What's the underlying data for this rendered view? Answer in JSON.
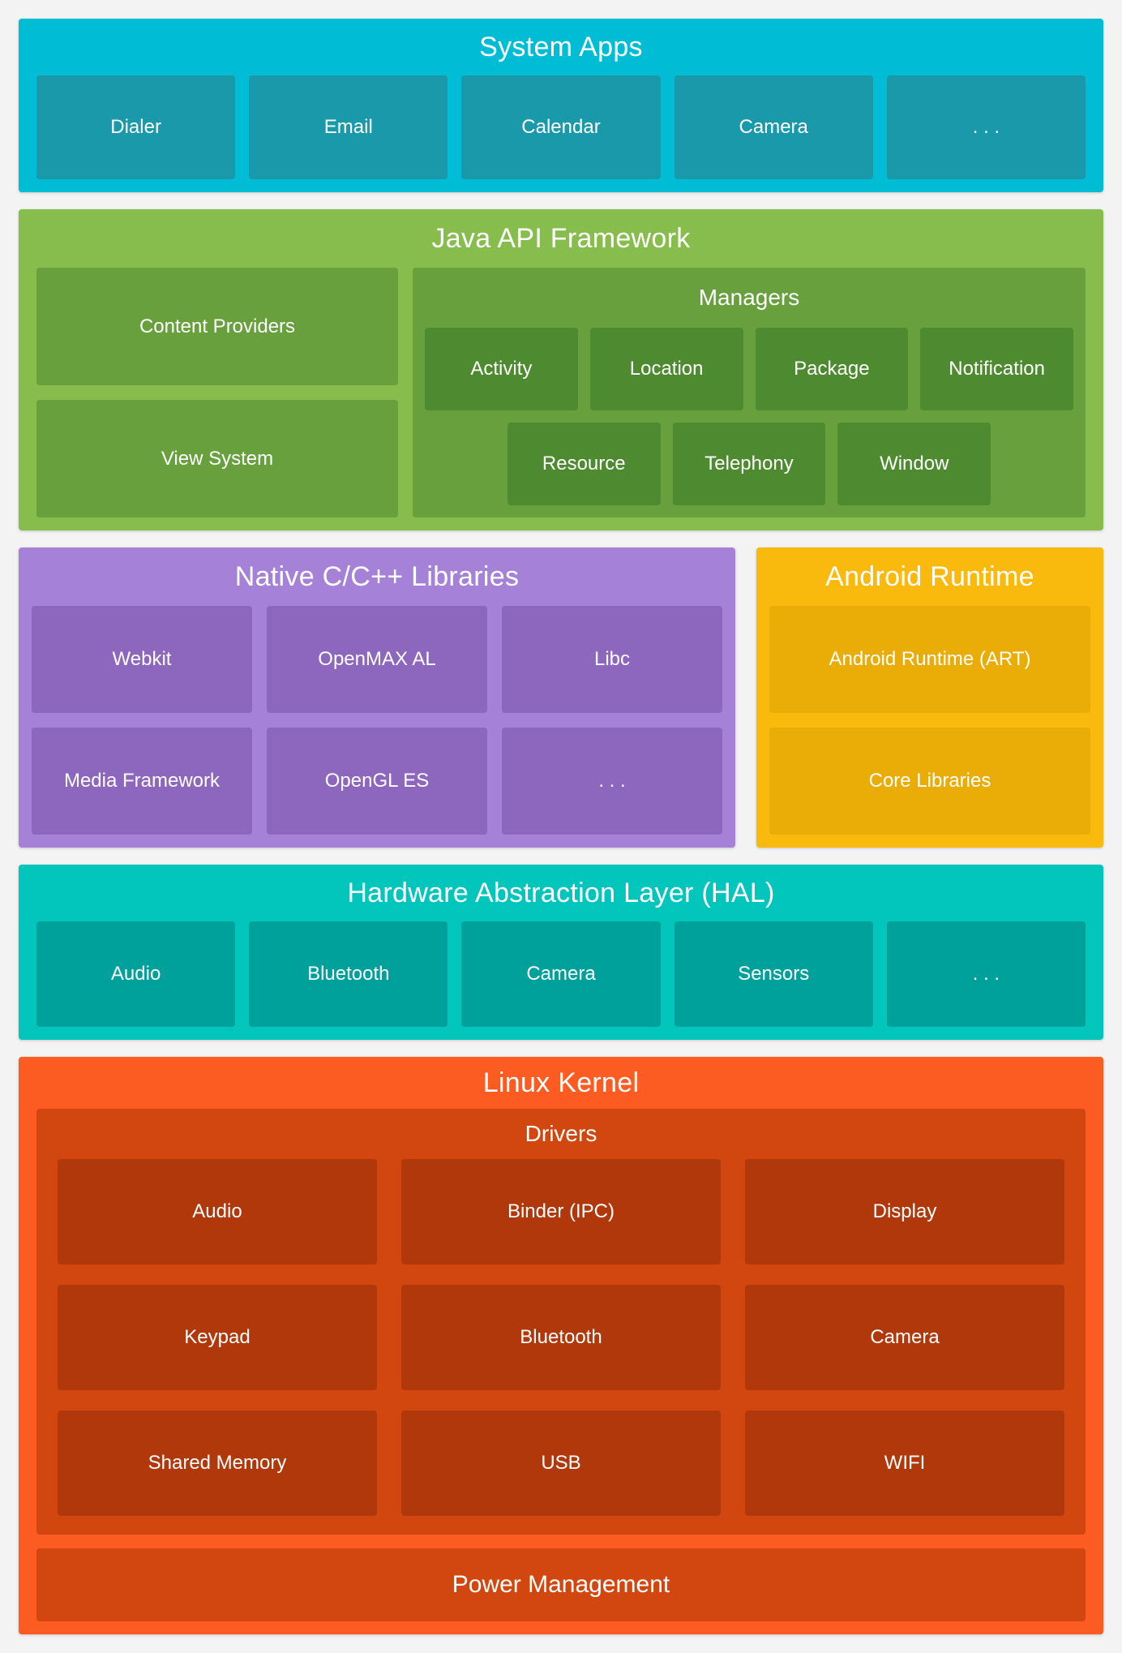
{
  "page": {
    "background": "#f3f3f3",
    "text_color": "#ffffff"
  },
  "layers": {
    "system_apps": {
      "title": "System Apps",
      "colors": {
        "bg": "#00BCD4",
        "box": "#1A99AA"
      },
      "boxes": [
        "Dialer",
        "Email",
        "Calendar",
        "Camera",
        ". . ."
      ]
    },
    "java_api": {
      "title": "Java API Framework",
      "colors": {
        "bg": "#87BD4D",
        "mid": "#67A03C",
        "box": "#4E8A2F"
      },
      "left_boxes": [
        "Content Providers",
        "View System"
      ],
      "managers": {
        "title": "Managers",
        "row1": [
          "Activity",
          "Location",
          "Package",
          "Notification"
        ],
        "row2": [
          "Resource",
          "Telephony",
          "Window"
        ]
      }
    },
    "native_libs": {
      "title": "Native C/C++ Libraries",
      "colors": {
        "bg": "#A581D8",
        "box": "#8C67BD"
      },
      "boxes": [
        "Webkit",
        "OpenMAX AL",
        "Libc",
        "Media Framework",
        "OpenGL ES",
        ". . ."
      ]
    },
    "android_runtime": {
      "title": "Android Runtime",
      "colors": {
        "bg": "#F9B90D",
        "box": "#EAAC06"
      },
      "boxes": [
        "Android Runtime (ART)",
        "Core Libraries"
      ]
    },
    "hal": {
      "title": "Hardware Abstraction Layer (HAL)",
      "colors": {
        "bg": "#02C6BC",
        "box": "#00A09B"
      },
      "boxes": [
        "Audio",
        "Bluetooth",
        "Camera",
        "Sensors",
        ". . ."
      ]
    },
    "linux_kernel": {
      "title": "Linux Kernel",
      "colors": {
        "bg": "#FC5B22",
        "mid": "#D2470F",
        "box": "#B1380A"
      },
      "drivers": {
        "title": "Drivers",
        "boxes": [
          "Audio",
          "Binder (IPC)",
          "Display",
          "Keypad",
          "Bluetooth",
          "Camera",
          "Shared Memory",
          "USB",
          "WIFI"
        ]
      },
      "power_label": "Power Management"
    }
  }
}
